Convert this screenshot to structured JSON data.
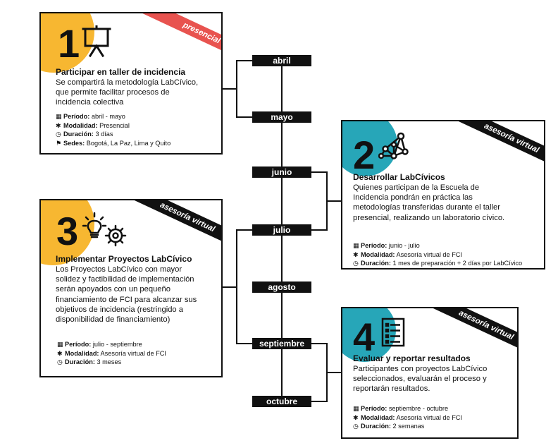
{
  "timeline": {
    "months": [
      "abril",
      "mayo",
      "junio",
      "julio",
      "agosto",
      "septiembre",
      "octubre"
    ]
  },
  "colors": {
    "yellow": "#F7B731",
    "teal": "#27A6B8",
    "red_ribbon": "#E8534F",
    "black": "#111111"
  },
  "labels": {
    "period": "Período:",
    "modality": "Modalidad:",
    "duration": "Duración:",
    "venues": "Sedes:"
  },
  "cards": [
    {
      "number": "1",
      "icon": "projector-screen-icon",
      "ribbon": "presencial",
      "title": "Participar en taller de incidencia",
      "description": "Se compartirá la metodología LabCívico, que permite facilitar procesos de incidencia colectiva",
      "period": "abril - mayo",
      "modality": "Presencial",
      "duration": "3 días",
      "venues": "Bogotá, La Paz, Lima y Quito"
    },
    {
      "number": "2",
      "icon": "network-nodes-icon",
      "ribbon": "asesoría virtual",
      "title": "Desarrollar LabCívicos",
      "description": "Quienes participan de la Escuela de Incidencia pondrán en práctica las metodologías transferidas durante el taller presencial, realizando un laboratorio cívico.",
      "period": "junio - julio",
      "modality": "Asesoría virtual de FCI",
      "duration": "1 mes de preparación + 2 días por LabCívico"
    },
    {
      "number": "3",
      "icon": "lightbulb-gear-icon",
      "ribbon": "asesoría virtual",
      "title": "Implementar Proyectos LabCívico",
      "description": "Los Proyectos LabCívico con mayor solidez y factibilidad de implementación serán apoyados con un pequeño financiamiento de FCI para alcanzar sus objetivos de incidencia (restringido a disponibilidad de financiamiento)",
      "period": "julio - septiembre",
      "modality": "Asesoría virtual de FCI",
      "duration": "3 meses"
    },
    {
      "number": "4",
      "icon": "checklist-icon",
      "ribbon": "asesoría virtual",
      "title": "Evaluar y reportar resultados",
      "description": "Participantes con proyectos LabCívico seleccionados, evaluarán el proceso y reportarán resultados.",
      "period": "septiembre - octubre",
      "modality": "Asesoría virtual de FCI",
      "duration": "2 semanas"
    }
  ]
}
